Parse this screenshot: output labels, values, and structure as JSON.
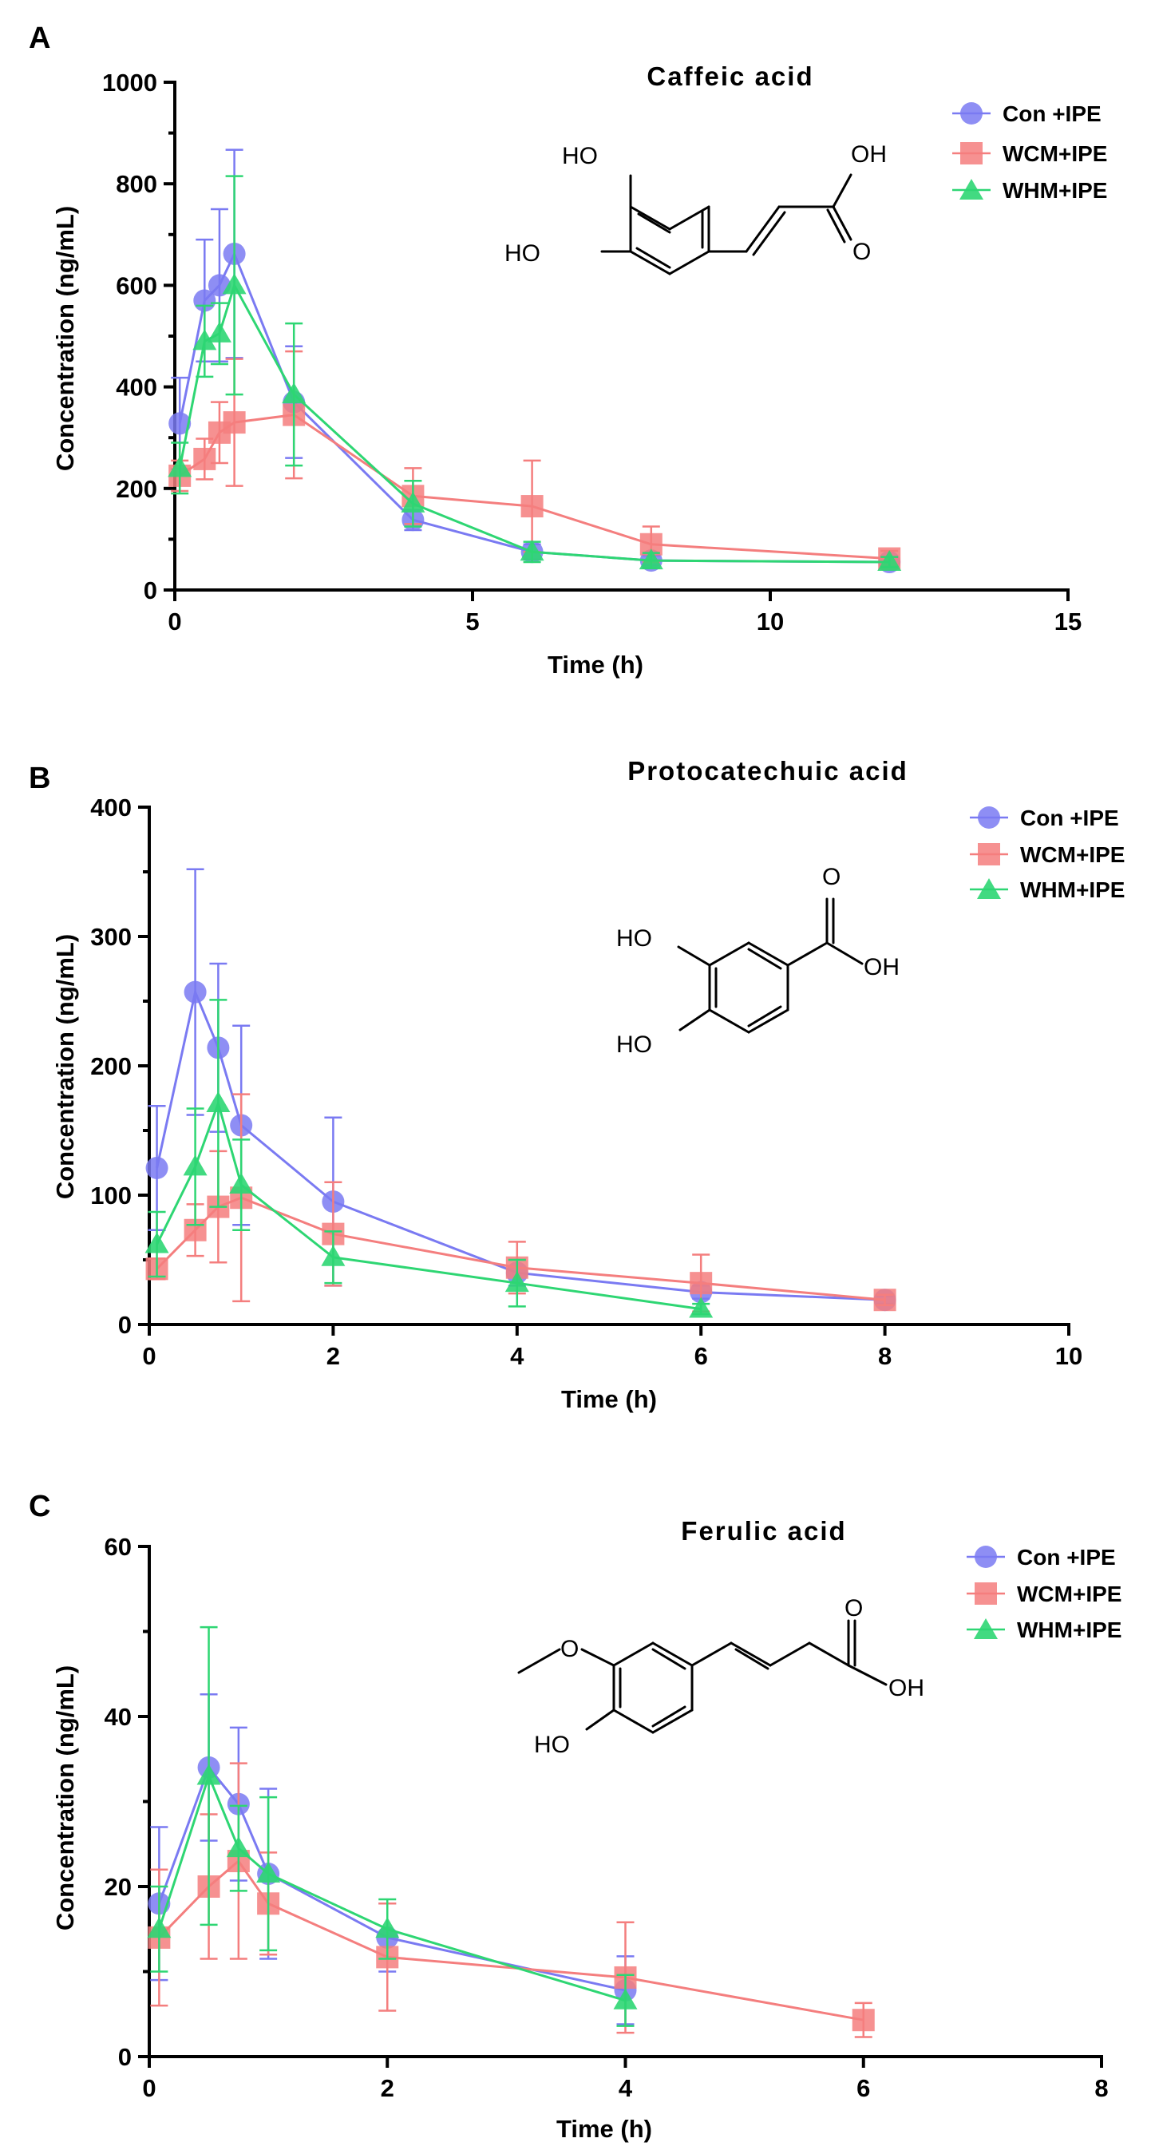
{
  "colors": {
    "con": "#7a7af2",
    "wcm": "#f47e7e",
    "whm": "#2ed673",
    "axis": "#000000"
  },
  "legend_labels": [
    "Con +IPE",
    "WCM+IPE",
    "WHM+IPE"
  ],
  "structures": [
    {
      "name": "caffeic",
      "labels": [
        "HO",
        "HO",
        "OH",
        "O"
      ]
    },
    {
      "name": "protocatechuic",
      "labels": [
        "O",
        "HO",
        "OH",
        "HO"
      ]
    },
    {
      "name": "ferulic",
      "labels": [
        "O",
        "O",
        "OH",
        "HO"
      ]
    }
  ],
  "chart_data": [
    {
      "panel": "A",
      "type": "line",
      "title": "Caffeic acid",
      "xlabel": "Time (h)",
      "ylabel": "Concentration (ng/mL)",
      "xlim": [
        0,
        15
      ],
      "ylim": [
        0,
        1000
      ],
      "xticks": [
        0,
        5,
        10,
        15
      ],
      "yticks": [
        0,
        200,
        400,
        600,
        800,
        1000
      ],
      "yminor": [
        100,
        300,
        500,
        700,
        900
      ],
      "legend_position": "top-right",
      "series": [
        {
          "name": "Con +IPE",
          "marker": "circle",
          "x": [
            0.083,
            0.5,
            0.75,
            1,
            2,
            4,
            6,
            8,
            12
          ],
          "y": [
            328,
            570,
            600,
            662,
            370,
            138,
            75,
            58,
            55
          ],
          "err": [
            90,
            120,
            150,
            205,
            110,
            20,
            15,
            10,
            10
          ]
        },
        {
          "name": "WCM+IPE",
          "marker": "square",
          "x": [
            0.083,
            0.5,
            0.75,
            1,
            2,
            4,
            6,
            8,
            12
          ],
          "y": [
            225,
            258,
            310,
            330,
            345,
            185,
            165,
            90,
            62
          ],
          "err": [
            30,
            40,
            60,
            125,
            125,
            55,
            90,
            35,
            15
          ]
        },
        {
          "name": "WHM+IPE",
          "marker": "triangle",
          "x": [
            0.083,
            0.5,
            0.75,
            1,
            2,
            4,
            6,
            8,
            12
          ],
          "y": [
            240,
            490,
            505,
            600,
            385,
            170,
            75,
            58,
            55
          ],
          "err": [
            50,
            70,
            60,
            215,
            140,
            45,
            20,
            15,
            10
          ]
        }
      ]
    },
    {
      "panel": "B",
      "type": "line",
      "title": "Protocatechuic acid",
      "xlabel": "Time (h)",
      "ylabel": "Concentration (ng/mL)",
      "xlim": [
        0,
        10
      ],
      "ylim": [
        0,
        400
      ],
      "xticks": [
        0,
        2,
        4,
        6,
        8,
        10
      ],
      "yticks": [
        0,
        100,
        200,
        300,
        400
      ],
      "yminor": [
        50,
        150,
        250,
        350
      ],
      "legend_position": "top-right",
      "series": [
        {
          "name": "Con +IPE",
          "marker": "circle",
          "x": [
            0.083,
            0.5,
            0.75,
            1,
            2,
            4,
            6,
            8
          ],
          "y": [
            121,
            257,
            214,
            154,
            95,
            40,
            25,
            19
          ],
          "err": [
            48,
            95,
            65,
            77,
            65,
            10,
            5,
            3
          ]
        },
        {
          "name": "WCM+IPE",
          "marker": "square",
          "x": [
            0.083,
            0.5,
            0.75,
            1,
            2,
            4,
            6,
            8
          ],
          "y": [
            43,
            73,
            91,
            98,
            70,
            44,
            32,
            19
          ],
          "err": [
            8,
            20,
            43,
            80,
            40,
            20,
            22,
            4
          ]
        },
        {
          "name": "WHM+IPE",
          "marker": "triangle",
          "x": [
            0.083,
            0.5,
            0.75,
            1,
            2,
            4,
            6
          ],
          "y": [
            62,
            122,
            171,
            108,
            52,
            32,
            12
          ],
          "err": [
            25,
            45,
            80,
            35,
            20,
            18,
            4
          ]
        }
      ]
    },
    {
      "panel": "C",
      "type": "line",
      "title": "Ferulic acid",
      "xlabel": "Time (h)",
      "ylabel": "Concentration (ng/mL)",
      "xlim": [
        0,
        8
      ],
      "ylim": [
        0,
        60
      ],
      "xticks": [
        0,
        2,
        4,
        6,
        8
      ],
      "yticks": [
        0,
        20,
        40,
        60
      ],
      "yminor": [
        10,
        30,
        50
      ],
      "legend_position": "top-right",
      "series": [
        {
          "name": "Con +IPE",
          "marker": "circle",
          "x": [
            0.083,
            0.5,
            0.75,
            1,
            2,
            4
          ],
          "y": [
            18,
            34,
            29.7,
            21.5,
            14,
            7.8
          ],
          "err": [
            9,
            8.6,
            9,
            10,
            4,
            4
          ]
        },
        {
          "name": "WCM+IPE",
          "marker": "square",
          "x": [
            0.083,
            0.5,
            0.75,
            1,
            2,
            4,
            6
          ],
          "y": [
            14,
            20,
            23,
            18,
            11.7,
            9.3,
            4.3
          ],
          "err": [
            8,
            8.5,
            11.5,
            6,
            6.3,
            6.5,
            2
          ]
        },
        {
          "name": "WHM+IPE",
          "marker": "triangle",
          "x": [
            0.083,
            0.5,
            0.75,
            1,
            2,
            4
          ],
          "y": [
            15,
            33,
            24.5,
            21.5,
            15,
            6.6
          ],
          "err": [
            5,
            17.5,
            5,
            9,
            3.5,
            3
          ]
        }
      ]
    }
  ]
}
